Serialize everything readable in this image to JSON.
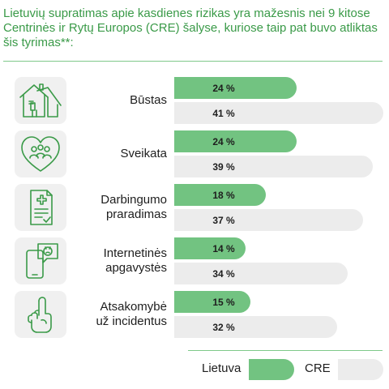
{
  "chart_data": {
    "type": "bar",
    "orientation": "horizontal",
    "title": "Lietuvių supratimas apie kasdienes rizikas yra mažesnis nei 9 kitose Centrinės ir Rytų Europos (CRE) šalyse, kuriose taip pat buvo atliktas šis tyrimas**:",
    "categories": [
      "Būstas",
      "Sveikata",
      "Darbingumo\nprarad­imas",
      "Internetinės\napgavystės",
      "Atsakomybė\nuž incidentus"
    ],
    "icons": [
      "house-icon",
      "family-heart-icon",
      "medical-document-icon",
      "phone-scam-icon",
      "pointing-hand-icon"
    ],
    "series": [
      {
        "name": "Lietuva",
        "color": "#72c381",
        "values": [
          24,
          24,
          18,
          14,
          15
        ],
        "labels": [
          "24 %",
          "24 %",
          "18 %",
          "14 %",
          "15 %"
        ]
      },
      {
        "name": "CRE",
        "color": "#ececec",
        "values": [
          41,
          39,
          37,
          34,
          32
        ],
        "labels": [
          "41 %",
          "39 %",
          "37 %",
          "34 %",
          "32 %"
        ]
      }
    ],
    "xlim": [
      0,
      42
    ],
    "legend": "bottom-right",
    "grid": false
  }
}
